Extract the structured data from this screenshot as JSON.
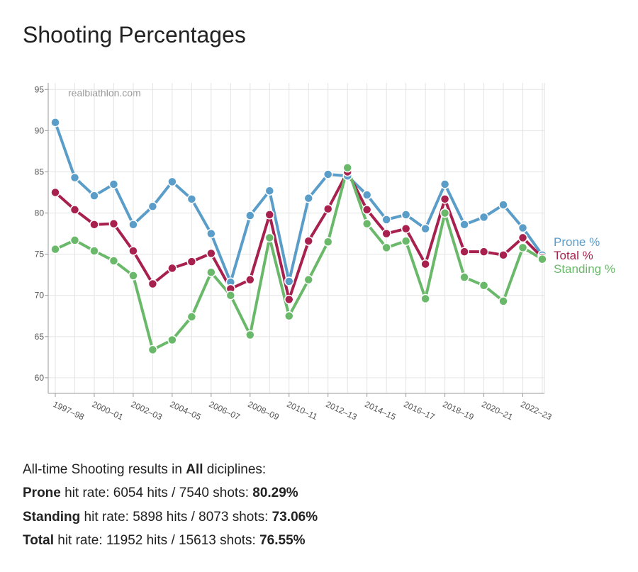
{
  "chart_data": {
    "type": "line",
    "title": "Shooting Percentages",
    "watermark": "realbiathlon.com",
    "categories": [
      "1997–98",
      null,
      "2000–01",
      null,
      "2002–03",
      null,
      "2004–05",
      null,
      "2006–07",
      null,
      "2008–09",
      null,
      "2010–11",
      null,
      "2012–13",
      null,
      "2014–15",
      null,
      "2016–17",
      null,
      "2018–19",
      null,
      "2020–21",
      null,
      "2022–23",
      null
    ],
    "series": [
      {
        "name": "Prone %",
        "color": "#5b9dc9",
        "values": [
          91.0,
          84.3,
          82.1,
          83.5,
          78.6,
          80.8,
          83.8,
          81.7,
          77.5,
          71.6,
          79.7,
          82.7,
          71.7,
          81.8,
          84.7,
          84.5,
          82.2,
          79.2,
          79.8,
          78.1,
          83.5,
          78.6,
          79.5,
          81.0,
          78.2,
          74.9
        ]
      },
      {
        "name": "Total %",
        "color": "#a8204e",
        "values": [
          82.5,
          80.4,
          78.6,
          78.7,
          75.4,
          71.4,
          73.3,
          74.1,
          75.1,
          70.8,
          71.9,
          79.8,
          69.5,
          76.6,
          80.5,
          85.0,
          80.4,
          77.5,
          78.1,
          73.8,
          81.7,
          75.3,
          75.3,
          74.9,
          77.0,
          74.6
        ]
      },
      {
        "name": "Standing %",
        "color": "#6ab96a",
        "values": [
          75.6,
          76.7,
          75.4,
          74.2,
          72.4,
          63.4,
          64.6,
          67.4,
          72.8,
          70.0,
          65.2,
          77.0,
          67.5,
          71.9,
          76.5,
          85.5,
          78.7,
          75.8,
          76.6,
          69.6,
          80.0,
          72.2,
          71.2,
          69.3,
          75.8,
          74.4
        ]
      }
    ],
    "ylim": [
      58.1,
      95.8
    ],
    "yticks": [
      60,
      65,
      70,
      75,
      80,
      85,
      90,
      95
    ],
    "grid": true
  },
  "summary": {
    "intro": [
      "All-time Shooting results in ",
      "All",
      " diciplines:"
    ],
    "lines": [
      {
        "label": "Prone",
        "text": " hit rate: 6054 hits / 7540 shots: ",
        "result": "80.29%"
      },
      {
        "label": "Standing",
        "text": " hit rate: 5898 hits / 8073 shots: ",
        "result": "73.06%"
      },
      {
        "label": "Total",
        "text": " hit rate: 11952 hits / 15613 shots: ",
        "result": "76.55%"
      }
    ]
  }
}
